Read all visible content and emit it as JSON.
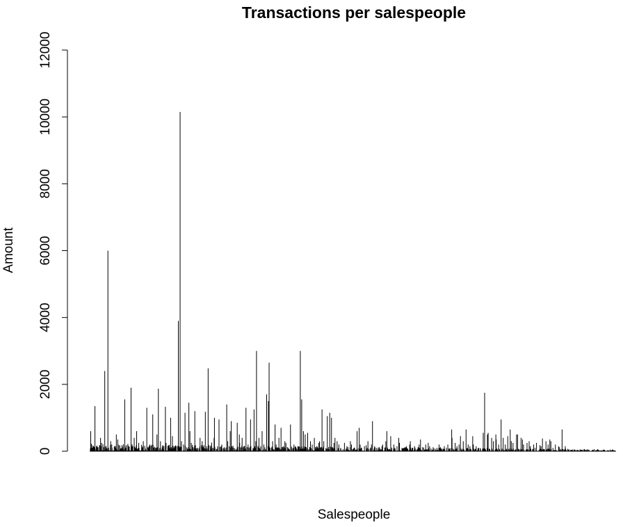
{
  "chart_data": {
    "type": "bar",
    "title": "Transactions per salespeople",
    "xlabel": "Salespeople",
    "ylabel": "Amount",
    "ylim": [
      0,
      12000
    ],
    "yticks": [
      0,
      2000,
      4000,
      6000,
      8000,
      10000,
      12000
    ],
    "grid": false,
    "legend": "none",
    "bar_color": "#000000",
    "n_bars": 1500,
    "values": [
      600,
      0,
      1350,
      120,
      400,
      250,
      2400,
      80,
      6000,
      300,
      200,
      150,
      500,
      350,
      100,
      180,
      1550,
      220,
      90,
      1900,
      400,
      130,
      600,
      250,
      80,
      300,
      1300,
      150,
      200,
      1100,
      90,
      500,
      1870,
      300,
      120,
      1330,
      250,
      100,
      1000,
      450,
      150,
      3900,
      10150,
      300,
      200,
      1150,
      1450,
      600,
      250,
      1200,
      180,
      80,
      400,
      300,
      1180,
      150,
      2480,
      260,
      400,
      1000,
      150,
      950,
      200,
      90,
      1400,
      300,
      600,
      900,
      100,
      850,
      500,
      250,
      400,
      100,
      1300,
      200,
      950,
      1250,
      300,
      3000,
      400,
      600,
      200,
      1700,
      1500,
      2650,
      300,
      800,
      200,
      400,
      700,
      150,
      300,
      250,
      100,
      800,
      200,
      120,
      60,
      3000,
      1550,
      600,
      500,
      550,
      300,
      200,
      400,
      150,
      250,
      300,
      1250,
      300,
      1050,
      1150,
      1000,
      250,
      400,
      300,
      200,
      100,
      250,
      80,
      150,
      300,
      200,
      100,
      600,
      700,
      200,
      100,
      150,
      180,
      300,
      200,
      900,
      150,
      100,
      80,
      150,
      200,
      300,
      600,
      450,
      100,
      200,
      150,
      400,
      250,
      80,
      100,
      150,
      200,
      300,
      100,
      150,
      120,
      200,
      350,
      120,
      200,
      250,
      150,
      80,
      120,
      100,
      200,
      120,
      80,
      150,
      100,
      200,
      650,
      400,
      250,
      150,
      200,
      450,
      300,
      650,
      200,
      150,
      450,
      200,
      150,
      100,
      80,
      550,
      1750,
      500,
      550,
      400,
      300,
      500,
      350,
      200,
      950,
      400,
      200,
      450,
      650,
      300,
      250,
      500,
      500,
      400,
      350,
      200,
      250,
      300,
      150,
      200,
      100,
      250,
      180,
      150,
      380,
      300,
      200,
      350,
      300,
      100,
      200,
      150,
      120,
      650,
      150,
      80
    ]
  }
}
